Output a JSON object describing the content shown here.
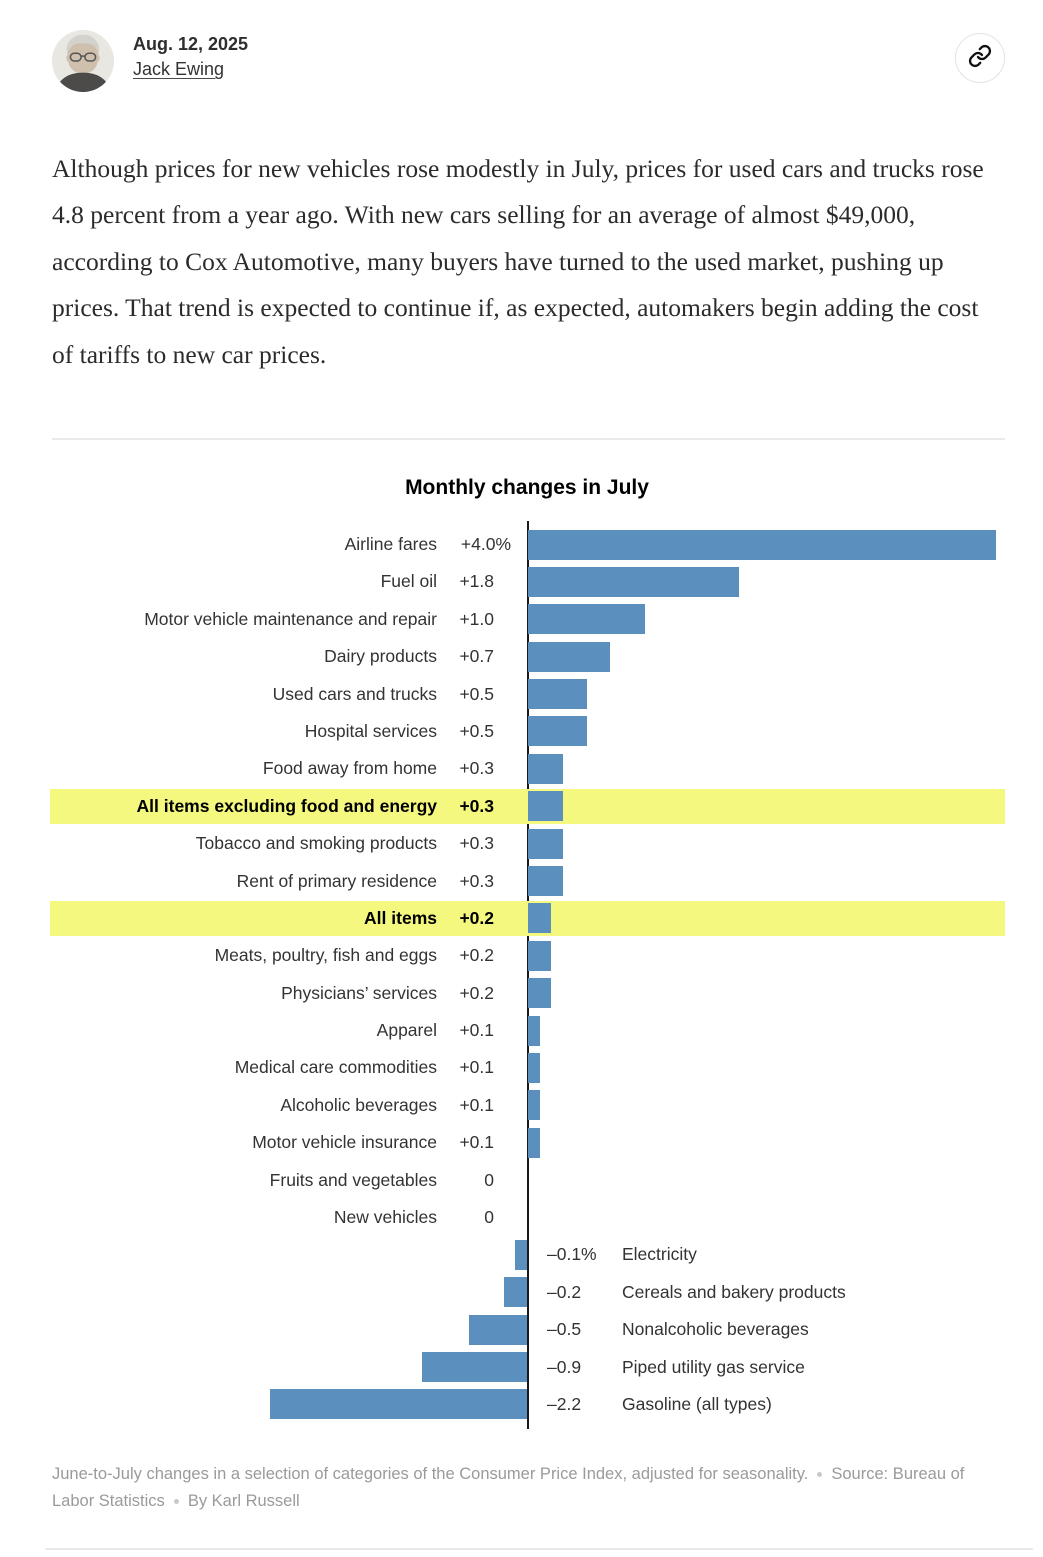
{
  "header": {
    "date": "Aug. 12, 2025",
    "author": "Jack Ewing",
    "share_icon": "link-icon"
  },
  "article": {
    "paragraph": "Although prices for new vehicles rose modestly in July, prices for used cars and trucks rose 4.8 percent from a year ago. With new cars selling for an average of almost $49,000, according to Cox Automotive, many buyers have turned to the used market, pushing up prices. That trend is expected to continue if, as expected, automakers begin adding the cost of tariffs to new car prices."
  },
  "chart_data": {
    "type": "bar",
    "orientation": "horizontal",
    "title": "Monthly changes in July",
    "unit": "percent, June-to-July change",
    "bar_color": "#5b8fbd",
    "highlight_color": "#f4f87e",
    "zero_baseline": true,
    "xlim": [
      -2.2,
      4.0
    ],
    "rows": [
      {
        "label": "Airline fares",
        "value": 4.0,
        "display": "+4.0%"
      },
      {
        "label": "Fuel oil",
        "value": 1.8,
        "display": "+1.8"
      },
      {
        "label": "Motor vehicle maintenance and repair",
        "value": 1.0,
        "display": "+1.0"
      },
      {
        "label": "Dairy products",
        "value": 0.7,
        "display": "+0.7"
      },
      {
        "label": "Used cars and trucks",
        "value": 0.5,
        "display": "+0.5"
      },
      {
        "label": "Hospital services",
        "value": 0.5,
        "display": "+0.5"
      },
      {
        "label": "Food away from home",
        "value": 0.3,
        "display": "+0.3"
      },
      {
        "label": "All items excluding food and energy",
        "value": 0.3,
        "display": "+0.3",
        "highlight": true
      },
      {
        "label": "Tobacco and smoking products",
        "value": 0.3,
        "display": "+0.3"
      },
      {
        "label": "Rent of primary residence",
        "value": 0.3,
        "display": "+0.3"
      },
      {
        "label": "All items",
        "value": 0.2,
        "display": "+0.2",
        "highlight": true
      },
      {
        "label": "Meats, poultry, fish and eggs",
        "value": 0.2,
        "display": "+0.2"
      },
      {
        "label": "Physicians’ services",
        "value": 0.2,
        "display": "+0.2"
      },
      {
        "label": "Apparel",
        "value": 0.1,
        "display": "+0.1"
      },
      {
        "label": "Medical care commodities",
        "value": 0.1,
        "display": "+0.1"
      },
      {
        "label": "Alcoholic beverages",
        "value": 0.1,
        "display": "+0.1"
      },
      {
        "label": "Motor vehicle insurance",
        "value": 0.1,
        "display": "+0.1"
      },
      {
        "label": "Fruits and vegetables",
        "value": 0,
        "display": "0"
      },
      {
        "label": "New vehicles",
        "value": 0,
        "display": "0"
      },
      {
        "label": "Electricity",
        "value": -0.1,
        "display": "–0.1%"
      },
      {
        "label": "Cereals and bakery products",
        "value": -0.2,
        "display": "–0.2"
      },
      {
        "label": "Nonalcoholic beverages",
        "value": -0.5,
        "display": "–0.5"
      },
      {
        "label": "Piped utility gas service",
        "value": -0.9,
        "display": "–0.9"
      },
      {
        "label": "Gasoline (all types)",
        "value": -2.2,
        "display": "–2.2"
      }
    ]
  },
  "footer": {
    "caption": "June-to-July changes in a selection of categories of the Consumer Price Index, adjusted for seasonality.",
    "source": "Source: Bureau of Labor Statistics",
    "byline": "By Karl Russell"
  }
}
